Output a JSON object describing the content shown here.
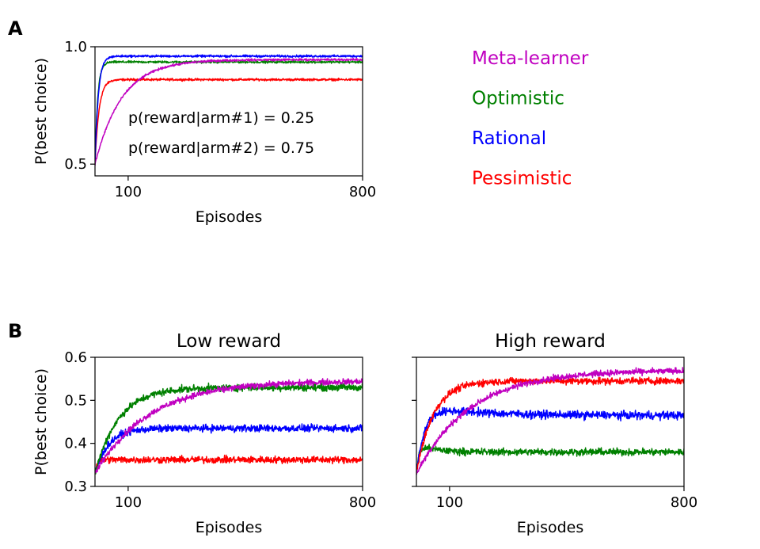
{
  "panel_labels": {
    "a": "A",
    "b": "B"
  },
  "legend": [
    {
      "label": "Meta-learner",
      "color": "#c000c0"
    },
    {
      "label": "Optimistic",
      "color": "#008000"
    },
    {
      "label": "Rational",
      "color": "#0000ff"
    },
    {
      "label": "Pessimistic",
      "color": "#ff0000"
    }
  ],
  "chart_data": [
    {
      "type": "line",
      "id": "A",
      "title": "",
      "xlabel": "Episodes",
      "ylabel": "P(best choice)",
      "xlim": [
        1,
        800
      ],
      "ylim": [
        0.45,
        1.0
      ],
      "xticks": [
        100,
        800
      ],
      "yticks": [
        0.5,
        1.0
      ],
      "ytick_labels": [
        "0.5",
        "1.0"
      ],
      "annotations": [
        "p(reward|arm#1) = 0.25",
        "p(reward|arm#2) = 0.75"
      ],
      "series": [
        {
          "name": "Pessimistic",
          "color": "#ff0000",
          "start": 0.5,
          "plateau": 0.86,
          "tau": 12,
          "noise": 0.004
        },
        {
          "name": "Optimistic",
          "color": "#008000",
          "start": 0.5,
          "plateau": 0.935,
          "tau": 8,
          "noise": 0.004
        },
        {
          "name": "Rational",
          "color": "#0000ff",
          "start": 0.5,
          "plateau": 0.96,
          "tau": 10,
          "noise": 0.004
        },
        {
          "name": "Meta-learner",
          "color": "#c000c0",
          "start": 0.5,
          "plateau": 0.945,
          "tau": 80,
          "noise": 0.004
        }
      ]
    },
    {
      "type": "line",
      "id": "B-low",
      "title": "Low reward",
      "xlabel": "Episodes",
      "ylabel": "P(best choice)",
      "xlim": [
        1,
        800
      ],
      "ylim": [
        0.3,
        0.6
      ],
      "xticks": [
        100,
        800
      ],
      "yticks": [
        0.3,
        0.4,
        0.5,
        0.6
      ],
      "ytick_labels": [
        "0.3",
        "0.4",
        "0.5",
        "0.6"
      ],
      "series": [
        {
          "name": "Pessimistic",
          "color": "#ff0000",
          "start": 0.33,
          "plateau": 0.362,
          "tau": 6,
          "noise": 0.007
        },
        {
          "name": "Rational",
          "color": "#0000ff",
          "start": 0.33,
          "plateau": 0.435,
          "tau": 40,
          "noise": 0.007
        },
        {
          "name": "Optimistic",
          "color": "#008000",
          "start": 0.33,
          "plateau": 0.53,
          "tau": 70,
          "noise": 0.007
        },
        {
          "name": "Meta-learner",
          "color": "#c000c0",
          "start": 0.33,
          "plateau": 0.545,
          "tau": 160,
          "noise": 0.006
        }
      ]
    },
    {
      "type": "line",
      "id": "B-high",
      "title": "High reward",
      "xlabel": "Episodes",
      "ylabel": "",
      "xlim": [
        1,
        800
      ],
      "ylim": [
        0.3,
        0.6
      ],
      "xticks": [
        100,
        800
      ],
      "yticks": [
        0.3,
        0.4,
        0.5,
        0.6
      ],
      "ytick_labels": [],
      "series": [
        {
          "name": "Optimistic",
          "color": "#008000",
          "start": 0.33,
          "plateau": 0.38,
          "peak": 0.4,
          "tau": 8,
          "noise": 0.007
        },
        {
          "name": "Rational",
          "color": "#0000ff",
          "start": 0.33,
          "plateau": 0.465,
          "peak": 0.49,
          "tau": 25,
          "noise": 0.008
        },
        {
          "name": "Pessimistic",
          "color": "#ff0000",
          "start": 0.33,
          "plateau": 0.545,
          "tau": 50,
          "noise": 0.007
        },
        {
          "name": "Meta-learner",
          "color": "#c000c0",
          "start": 0.33,
          "plateau": 0.57,
          "tau": 160,
          "noise": 0.006
        }
      ]
    }
  ]
}
